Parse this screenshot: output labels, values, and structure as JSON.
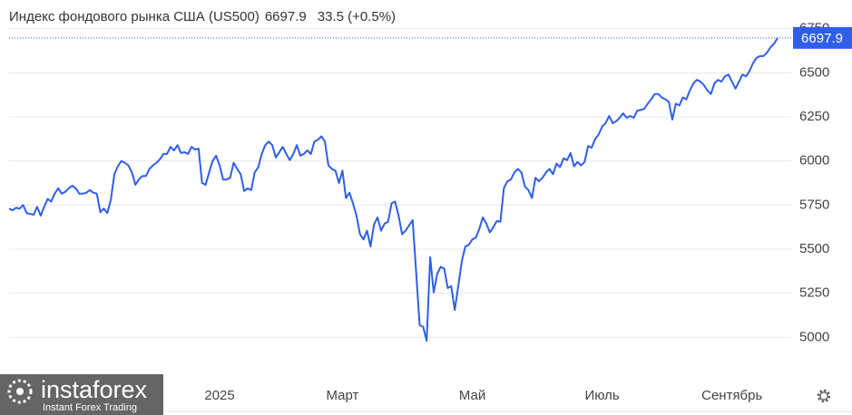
{
  "chart_data": {
    "type": "line",
    "title": "Индекс фондового рынка США (US500)",
    "change_text": "33.5 (+0.5%)",
    "color": "#2f5fe8",
    "change_color": "#2fb53a",
    "grid": true,
    "ylim": [
      4750,
      6810
    ],
    "yticks": [
      5000,
      5250,
      5500,
      5750,
      6000,
      6250,
      6500,
      6750
    ],
    "categories": [
      null,
      null,
      null,
      null,
      null,
      null,
      null,
      null,
      null,
      null,
      null,
      null,
      null,
      null,
      null,
      null,
      null,
      null,
      null,
      null,
      null,
      null,
      null,
      null,
      null,
      null,
      null,
      null,
      null,
      null,
      null,
      null,
      null,
      null,
      null,
      null,
      null,
      null,
      null,
      null,
      null,
      null,
      null,
      null,
      null,
      null,
      null,
      null,
      null,
      null,
      null,
      null,
      null,
      null,
      null,
      null,
      null,
      null,
      null,
      null,
      "2025",
      null,
      null,
      null,
      null,
      null,
      null,
      null,
      null,
      null,
      null,
      null,
      null,
      null,
      null,
      null,
      null,
      null,
      null,
      null,
      null,
      null,
      null,
      null,
      null,
      null,
      null,
      null,
      null,
      null,
      null,
      null,
      null,
      null,
      null,
      "Март",
      null,
      null,
      null,
      null,
      null,
      null,
      null,
      null,
      null,
      null,
      null,
      null,
      null,
      null,
      null,
      null,
      null,
      null,
      null,
      null,
      null,
      null,
      null,
      null,
      null,
      null,
      null,
      null,
      null,
      null,
      null,
      null,
      null,
      null,
      null,
      null,
      "Май",
      null,
      null,
      null,
      null,
      null,
      null,
      null,
      null,
      null,
      null,
      null,
      null,
      null,
      null,
      null,
      null,
      null,
      null,
      null,
      null,
      null,
      null,
      null,
      null,
      null,
      null,
      null,
      null,
      null,
      null,
      null,
      null,
      null,
      null,
      null,
      null,
      "Июль",
      null,
      null,
      null,
      null,
      null,
      null,
      null,
      null,
      null,
      null,
      null,
      null,
      null,
      null,
      null,
      null,
      null,
      null,
      null,
      null,
      null,
      null,
      null,
      null,
      null,
      null,
      null,
      null,
      null,
      null,
      null,
      null,
      null,
      null,
      null,
      null,
      "Сентябрь",
      null,
      null,
      null,
      null,
      null,
      null,
      null,
      null,
      null,
      null,
      null,
      null,
      null
    ],
    "values": [
      5730,
      5720,
      5735,
      5730,
      5750,
      5705,
      5700,
      5695,
      5740,
      5690,
      5740,
      5785,
      5770,
      5815,
      5845,
      5815,
      5825,
      5845,
      5860,
      5845,
      5815,
      5815,
      5820,
      5835,
      5820,
      5815,
      5710,
      5730,
      5705,
      5780,
      5925,
      5970,
      6000,
      5990,
      5975,
      5935,
      5865,
      5895,
      5915,
      5915,
      5955,
      5975,
      5990,
      6010,
      6040,
      6040,
      6080,
      6060,
      6090,
      6045,
      6050,
      6040,
      6080,
      6065,
      6070,
      5875,
      5865,
      5935,
      6000,
      6030,
      5975,
      5895,
      5895,
      5905,
      5990,
      5955,
      5925,
      5830,
      5845,
      5835,
      5935,
      5965,
      6040,
      6090,
      6110,
      6090,
      6020,
      6050,
      6080,
      6040,
      6005,
      6040,
      6090,
      6030,
      6040,
      6060,
      6040,
      6110,
      6120,
      6140,
      6110,
      5975,
      5955,
      5945,
      5875,
      5945,
      5790,
      5820,
      5760,
      5690,
      5585,
      5555,
      5605,
      5515,
      5640,
      5680,
      5605,
      5645,
      5655,
      5760,
      5770,
      5690,
      5585,
      5605,
      5635,
      5665,
      5370,
      5070,
      5060,
      4980,
      5455,
      5255,
      5360,
      5400,
      5390,
      5280,
      5290,
      5155,
      5290,
      5430,
      5515,
      5525,
      5555,
      5565,
      5615,
      5680,
      5645,
      5595,
      5625,
      5660,
      5655,
      5845,
      5885,
      5895,
      5935,
      5955,
      5935,
      5855,
      5835,
      5790,
      5905,
      5885,
      5905,
      5935,
      5955,
      5925,
      5985,
      5965,
      6015,
      6005,
      6045,
      5970,
      5995,
      5975,
      5995,
      6085,
      6075,
      6125,
      6150,
      6195,
      6215,
      6255,
      6215,
      6225,
      6245,
      6270,
      6245,
      6255,
      6245,
      6285,
      6290,
      6295,
      6325,
      6350,
      6380,
      6380,
      6360,
      6350,
      6335,
      6235,
      6325,
      6315,
      6360,
      6350,
      6400,
      6440,
      6460,
      6450,
      6430,
      6400,
      6380,
      6440,
      6460,
      6450,
      6480,
      6490,
      6450,
      6410,
      6450,
      6490,
      6480,
      6510,
      6555,
      6585,
      6595,
      6595,
      6615,
      6645,
      6665,
      6697.9
    ]
  },
  "watermark": {
    "brand": "instaforex",
    "tagline": "Instant Forex Trading"
  }
}
